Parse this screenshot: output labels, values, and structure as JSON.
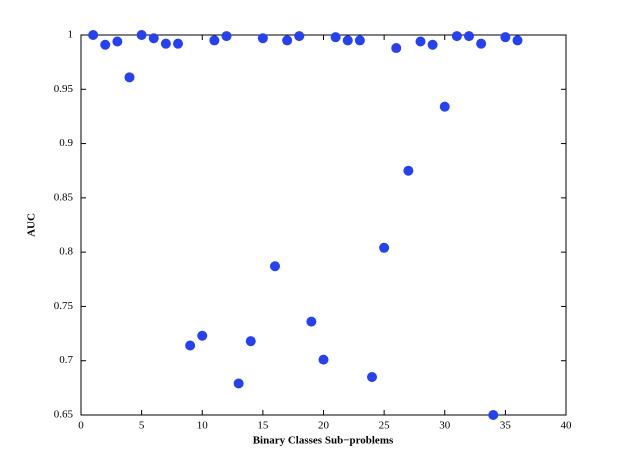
{
  "chart_data": {
    "type": "scatter",
    "xlabel": "Binary Classes Sub−problems",
    "ylabel": "AUC",
    "x": [
      1,
      2,
      3,
      4,
      5,
      6,
      7,
      8,
      9,
      10,
      11,
      12,
      13,
      14,
      15,
      16,
      17,
      18,
      19,
      20,
      21,
      22,
      23,
      24,
      25,
      26,
      27,
      28,
      29,
      30,
      31,
      32,
      33,
      34,
      35,
      36
    ],
    "y": [
      1.0,
      0.991,
      0.994,
      0.961,
      1.0,
      0.997,
      0.992,
      0.992,
      0.714,
      0.723,
      0.995,
      0.999,
      0.679,
      0.718,
      0.997,
      0.787,
      0.995,
      0.999,
      0.736,
      0.701,
      0.998,
      0.995,
      0.995,
      0.685,
      0.804,
      0.988,
      0.875,
      0.994,
      0.991,
      0.934,
      0.999,
      0.999,
      0.992,
      0.65,
      0.998,
      0.995
    ],
    "color": "#2541f0",
    "xlim": [
      0,
      40
    ],
    "xticks": [
      0,
      5,
      10,
      15,
      20,
      25,
      30,
      35,
      40
    ],
    "ylim": [
      0.65,
      1
    ],
    "yticks": [
      0.65,
      0.7,
      0.75,
      0.8,
      0.85,
      0.9,
      0.95,
      1
    ],
    "grid": false
  }
}
